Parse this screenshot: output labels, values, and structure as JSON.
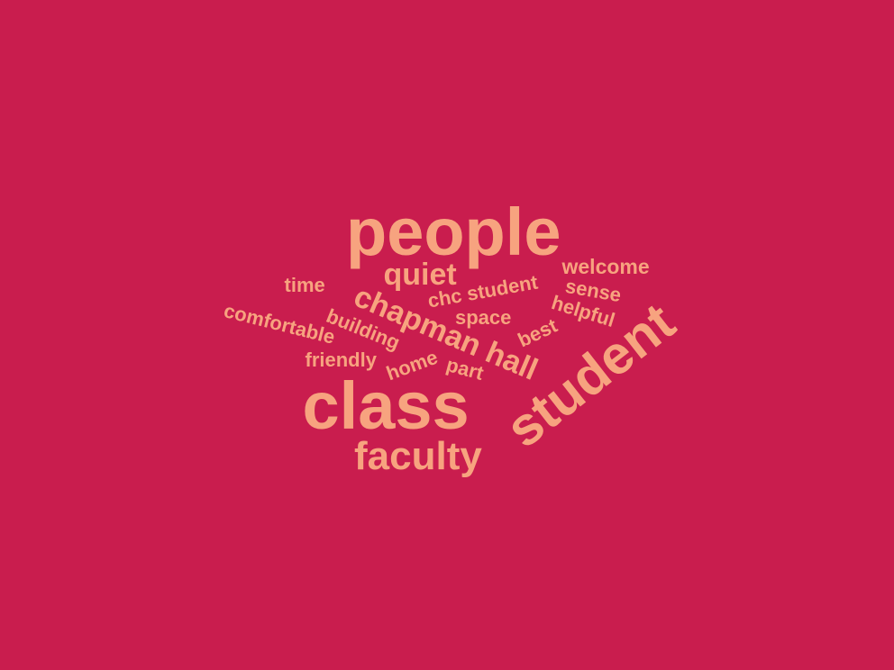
{
  "colors": {
    "background": "#c91d4e",
    "word": "#f7a37f"
  },
  "words": {
    "people": "people",
    "class": "class",
    "student": "student",
    "faculty": "faculty",
    "chapman_hall": "chapman hall",
    "quiet": "quiet",
    "welcome": "welcome",
    "time": "time",
    "chc_student": "chc student",
    "sense": "sense",
    "comfortable": "comfortable",
    "helpful": "helpful",
    "space": "space",
    "building": "building",
    "best": "best",
    "friendly": "friendly",
    "home": "home",
    "part": "part"
  }
}
